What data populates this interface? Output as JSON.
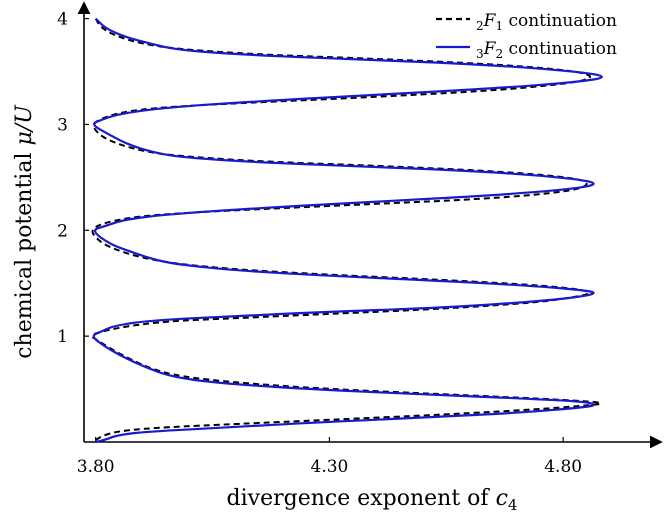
{
  "chart_data": {
    "type": "line",
    "xlabel": "divergence exponent of c4",
    "xlabel_parts": {
      "text": "divergence exponent of ",
      "var": "c",
      "sub": "4"
    },
    "ylabel": "chemical potential μ/U",
    "ylabel_parts": {
      "text": "chemical potential ",
      "math": "μ/U"
    },
    "xlim": [
      3.775,
      4.99
    ],
    "ylim": [
      0,
      4.1
    ],
    "x_ticks": [
      3.8,
      4.3,
      4.8
    ],
    "x_tick_labels": [
      "3.80",
      "4.30",
      "4.80"
    ],
    "y_ticks": [
      1,
      2,
      3,
      4
    ],
    "y_tick_labels": [
      "1",
      "2",
      "3",
      "4"
    ],
    "grid": false,
    "legend_position": "top-right",
    "series": [
      {
        "name": "2F1 continuation",
        "legend": {
          "sub": "2",
          "var": "F",
          "sub2": "1",
          "text": " continuation"
        },
        "color": "#000000",
        "style": "dashed",
        "points": [
          [
            3.8,
            0.02
          ],
          [
            3.82,
            0.07
          ],
          [
            3.86,
            0.11
          ],
          [
            3.95,
            0.14
          ],
          [
            4.1,
            0.17
          ],
          [
            4.3,
            0.21
          ],
          [
            4.55,
            0.26
          ],
          [
            4.75,
            0.31
          ],
          [
            4.86,
            0.35
          ],
          [
            4.885,
            0.36
          ],
          [
            4.87,
            0.38
          ],
          [
            4.75,
            0.41
          ],
          [
            4.55,
            0.45
          ],
          [
            4.3,
            0.5
          ],
          [
            4.1,
            0.56
          ],
          [
            3.98,
            0.62
          ],
          [
            3.92,
            0.69
          ],
          [
            3.88,
            0.77
          ],
          [
            3.84,
            0.86
          ],
          [
            3.8,
            0.97
          ],
          [
            3.79,
            1.0
          ],
          [
            3.8,
            1.03
          ],
          [
            3.86,
            1.09
          ],
          [
            3.95,
            1.14
          ],
          [
            4.1,
            1.17
          ],
          [
            4.3,
            1.21
          ],
          [
            4.55,
            1.26
          ],
          [
            4.75,
            1.32
          ],
          [
            4.84,
            1.38
          ],
          [
            4.86,
            1.41
          ],
          [
            4.84,
            1.44
          ],
          [
            4.75,
            1.48
          ],
          [
            4.55,
            1.53
          ],
          [
            4.3,
            1.58
          ],
          [
            4.1,
            1.63
          ],
          [
            3.98,
            1.68
          ],
          [
            3.91,
            1.73
          ],
          [
            3.86,
            1.79
          ],
          [
            3.82,
            1.86
          ],
          [
            3.8,
            1.93
          ],
          [
            3.79,
            2.0
          ],
          [
            3.81,
            2.06
          ],
          [
            3.87,
            2.12
          ],
          [
            3.97,
            2.16
          ],
          [
            4.15,
            2.2
          ],
          [
            4.4,
            2.25
          ],
          [
            4.65,
            2.3
          ],
          [
            4.82,
            2.37
          ],
          [
            4.86,
            2.44
          ],
          [
            4.82,
            2.5
          ],
          [
            4.65,
            2.56
          ],
          [
            4.4,
            2.61
          ],
          [
            4.15,
            2.65
          ],
          [
            3.98,
            2.7
          ],
          [
            3.91,
            2.74
          ],
          [
            3.85,
            2.81
          ],
          [
            3.81,
            2.89
          ],
          [
            3.79,
            3.0
          ],
          [
            3.82,
            3.07
          ],
          [
            3.87,
            3.13
          ],
          [
            3.97,
            3.17
          ],
          [
            4.15,
            3.21
          ],
          [
            4.4,
            3.26
          ],
          [
            4.65,
            3.32
          ],
          [
            4.82,
            3.39
          ],
          [
            4.87,
            3.45
          ],
          [
            4.82,
            3.51
          ],
          [
            4.65,
            3.57
          ],
          [
            4.4,
            3.62
          ],
          [
            4.15,
            3.66
          ],
          [
            3.98,
            3.71
          ],
          [
            3.9,
            3.76
          ],
          [
            3.84,
            3.84
          ],
          [
            3.81,
            3.92
          ],
          [
            3.8,
            4.0
          ]
        ]
      },
      {
        "name": "3F2 continuation",
        "legend": {
          "sub": "3",
          "var": "F",
          "sub2": "2",
          "text": " continuation"
        },
        "color": "#1a1acc",
        "style": "solid",
        "points": [
          [
            3.8,
            -0.01
          ],
          [
            3.82,
            0.02
          ],
          [
            3.85,
            0.07
          ],
          [
            3.92,
            0.1
          ],
          [
            4.05,
            0.13
          ],
          [
            4.25,
            0.18
          ],
          [
            4.5,
            0.23
          ],
          [
            4.72,
            0.28
          ],
          [
            4.85,
            0.33
          ],
          [
            4.87,
            0.35
          ],
          [
            4.85,
            0.38
          ],
          [
            4.72,
            0.41
          ],
          [
            4.5,
            0.45
          ],
          [
            4.25,
            0.5
          ],
          [
            4.05,
            0.56
          ],
          [
            3.96,
            0.62
          ],
          [
            3.91,
            0.7
          ],
          [
            3.86,
            0.8
          ],
          [
            3.82,
            0.9
          ],
          [
            3.79,
            1.0
          ],
          [
            3.81,
            1.04
          ],
          [
            3.84,
            1.1
          ],
          [
            3.92,
            1.15
          ],
          [
            4.1,
            1.19
          ],
          [
            4.3,
            1.23
          ],
          [
            4.55,
            1.27
          ],
          [
            4.75,
            1.33
          ],
          [
            4.85,
            1.38
          ],
          [
            4.87,
            1.41
          ],
          [
            4.85,
            1.43
          ],
          [
            4.75,
            1.47
          ],
          [
            4.55,
            1.52
          ],
          [
            4.3,
            1.57
          ],
          [
            4.1,
            1.62
          ],
          [
            3.97,
            1.68
          ],
          [
            3.92,
            1.73
          ],
          [
            3.88,
            1.79
          ],
          [
            3.83,
            1.87
          ],
          [
            3.79,
            2.0
          ],
          [
            3.82,
            2.04
          ],
          [
            3.86,
            2.1
          ],
          [
            3.95,
            2.15
          ],
          [
            4.15,
            2.21
          ],
          [
            4.4,
            2.27
          ],
          [
            4.65,
            2.33
          ],
          [
            4.82,
            2.39
          ],
          [
            4.88,
            2.44
          ],
          [
            4.82,
            2.49
          ],
          [
            4.65,
            2.55
          ],
          [
            4.4,
            2.6
          ],
          [
            4.15,
            2.64
          ],
          [
            3.98,
            2.69
          ],
          [
            3.92,
            2.74
          ],
          [
            3.87,
            2.81
          ],
          [
            3.83,
            2.9
          ],
          [
            3.79,
            3.0
          ],
          [
            3.81,
            3.04
          ],
          [
            3.85,
            3.1
          ],
          [
            3.95,
            3.16
          ],
          [
            4.15,
            3.22
          ],
          [
            4.4,
            3.28
          ],
          [
            4.65,
            3.34
          ],
          [
            4.83,
            3.4
          ],
          [
            4.9,
            3.45
          ],
          [
            4.83,
            3.5
          ],
          [
            4.65,
            3.56
          ],
          [
            4.4,
            3.61
          ],
          [
            4.15,
            3.65
          ],
          [
            3.98,
            3.7
          ],
          [
            3.92,
            3.76
          ],
          [
            3.86,
            3.83
          ],
          [
            3.82,
            3.91
          ],
          [
            3.8,
            4.0
          ]
        ]
      }
    ]
  }
}
